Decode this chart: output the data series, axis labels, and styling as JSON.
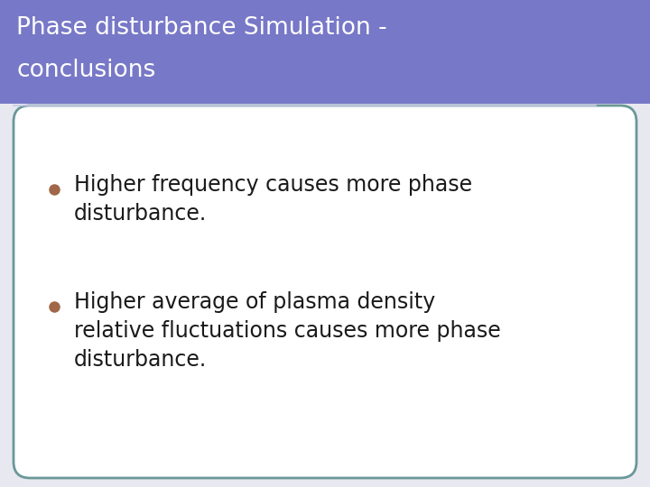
{
  "title_line1": "Phase disturbance Simulation -",
  "title_line2": "conclusions",
  "title_bg_color": "#7878C8",
  "title_text_color": "#FFFFFF",
  "title_underline_color": "#C8C8E8",
  "slide_bg_color": "#E8E8F0",
  "body_bg_color": "#FFFFFF",
  "body_border_color": "#6A9898",
  "bullet_color": "#A06848",
  "bullet1_line1": "Higher frequency causes more phase",
  "bullet1_line2": "disturbance.",
  "bullet2_line1": "Higher average of plasma density",
  "bullet2_line2": "relative fluctuations causes more phase",
  "bullet2_line3": "disturbance.",
  "text_color": "#1A1A1A",
  "fig_width": 7.2,
  "fig_height": 5.4,
  "dpi": 100
}
